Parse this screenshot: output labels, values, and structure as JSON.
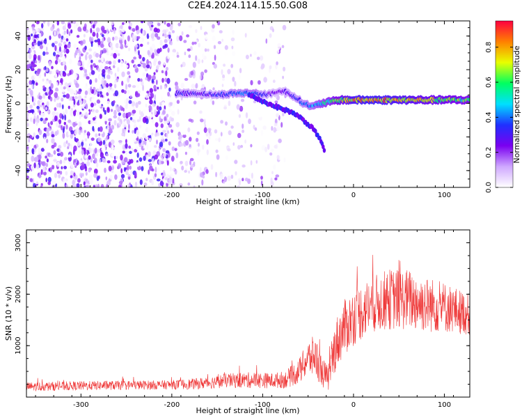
{
  "title": "C2E4.2024.114.15.50.G08",
  "chart_data": [
    {
      "type": "heatmap",
      "xlabel": "Height of straight line (km)",
      "ylabel": "Frequency (Hz)",
      "xlim": [
        -360,
        128
      ],
      "ylim": [
        -50,
        49
      ],
      "xticks": [
        -300,
        -200,
        -100,
        0,
        100
      ],
      "yticks": [
        -40,
        -20,
        0,
        20,
        40
      ],
      "colorbar": {
        "label": "Normalized spectral amplitude",
        "range": [
          0.0,
          0.95
        ],
        "ticks": [
          0.0,
          0.2,
          0.4,
          0.6,
          0.8
        ],
        "colors": [
          "#ffffff",
          "#cfa8ff",
          "#7a00f0",
          "#2030ff",
          "#00e0ff",
          "#00ff60",
          "#e8ff00",
          "#ff8000",
          "#ff0040"
        ]
      },
      "noise_region_x": [
        -360,
        -75
      ],
      "signal_track": {
        "x": [
          -195,
          -170,
          -150,
          -130,
          -110,
          -95,
          -85,
          -75,
          -65,
          -55,
          -45,
          -35,
          -25,
          -15,
          0,
          20,
          40,
          60,
          80,
          100,
          128
        ],
        "freq": [
          6,
          6,
          5,
          6,
          6,
          5,
          7,
          7,
          4,
          0,
          -2,
          0,
          1,
          2,
          2,
          2,
          2,
          2,
          2,
          2,
          2
        ],
        "amplitude": [
          0.35,
          0.3,
          0.35,
          0.4,
          0.45,
          0.3,
          0.25,
          0.3,
          0.35,
          0.4,
          0.45,
          0.55,
          0.6,
          0.7,
          0.85,
          0.9,
          0.85,
          0.8,
          0.75,
          0.7,
          0.65
        ]
      },
      "descending_branch": {
        "x": [
          -115,
          -95,
          -80,
          -65,
          -55,
          -45,
          -38,
          -32
        ],
        "freq": [
          5,
          0,
          -3,
          -6,
          -10,
          -15,
          -20,
          -28
        ]
      },
      "grid": false
    },
    {
      "type": "line",
      "xlabel": "Height of straight line (km)",
      "ylabel": "SNR (10 * v/v)",
      "xlim": [
        -360,
        128
      ],
      "ylim": [
        0,
        3250
      ],
      "xticks": [
        -300,
        -200,
        -100,
        0,
        100
      ],
      "yticks": [
        1000,
        2000,
        3000
      ],
      "series": [
        {
          "color": "#ee3333",
          "x": [
            -360,
            -300,
            -250,
            -200,
            -170,
            -140,
            -110,
            -90,
            -75,
            -60,
            -50,
            -42,
            -35,
            -28,
            -20,
            -12,
            0,
            20,
            40,
            60,
            80,
            100,
            128
          ],
          "mean": [
            200,
            220,
            230,
            240,
            260,
            320,
            330,
            320,
            340,
            500,
            750,
            800,
            500,
            350,
            1000,
            1300,
            1550,
            1800,
            1900,
            1900,
            1800,
            1750,
            1600
          ],
          "spread": [
            90,
            90,
            90,
            90,
            110,
            140,
            160,
            150,
            170,
            250,
            350,
            420,
            300,
            250,
            500,
            550,
            550,
            550,
            600,
            600,
            550,
            500,
            400
          ]
        }
      ],
      "grid": false
    }
  ]
}
